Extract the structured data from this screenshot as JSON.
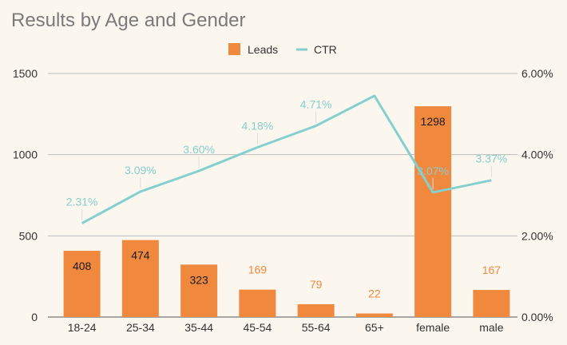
{
  "chart_data": {
    "type": "bar",
    "title": "Results by Age and Gender",
    "categories": [
      "18-24",
      "25-34",
      "35-44",
      "45-54",
      "55-64",
      "65+",
      "female",
      "male"
    ],
    "series": [
      {
        "name": "Leads",
        "type": "bar",
        "axis": "left",
        "color": "#f0883e",
        "values": [
          408,
          474,
          323,
          169,
          79,
          22,
          1298,
          167
        ]
      },
      {
        "name": "CTR",
        "type": "line",
        "axis": "right",
        "color": "#86cfcf",
        "values": [
          2.31,
          3.09,
          3.6,
          4.18,
          4.71,
          5.45,
          3.07,
          3.37
        ],
        "labels": [
          "2.31%",
          "3.09%",
          "3.60%",
          "4.18%",
          "4.71%",
          "",
          "3.07%",
          "3.37%"
        ]
      }
    ],
    "y_left": {
      "ylim": [
        0,
        1500
      ],
      "ticks": [
        "0",
        "500",
        "1000",
        "1500"
      ]
    },
    "y_right": {
      "ylim": [
        0,
        6
      ],
      "ticks": [
        "0.00%",
        "2.00%",
        "4.00%",
        "6.00%"
      ]
    },
    "legend_position": "top-center",
    "grid": true
  }
}
